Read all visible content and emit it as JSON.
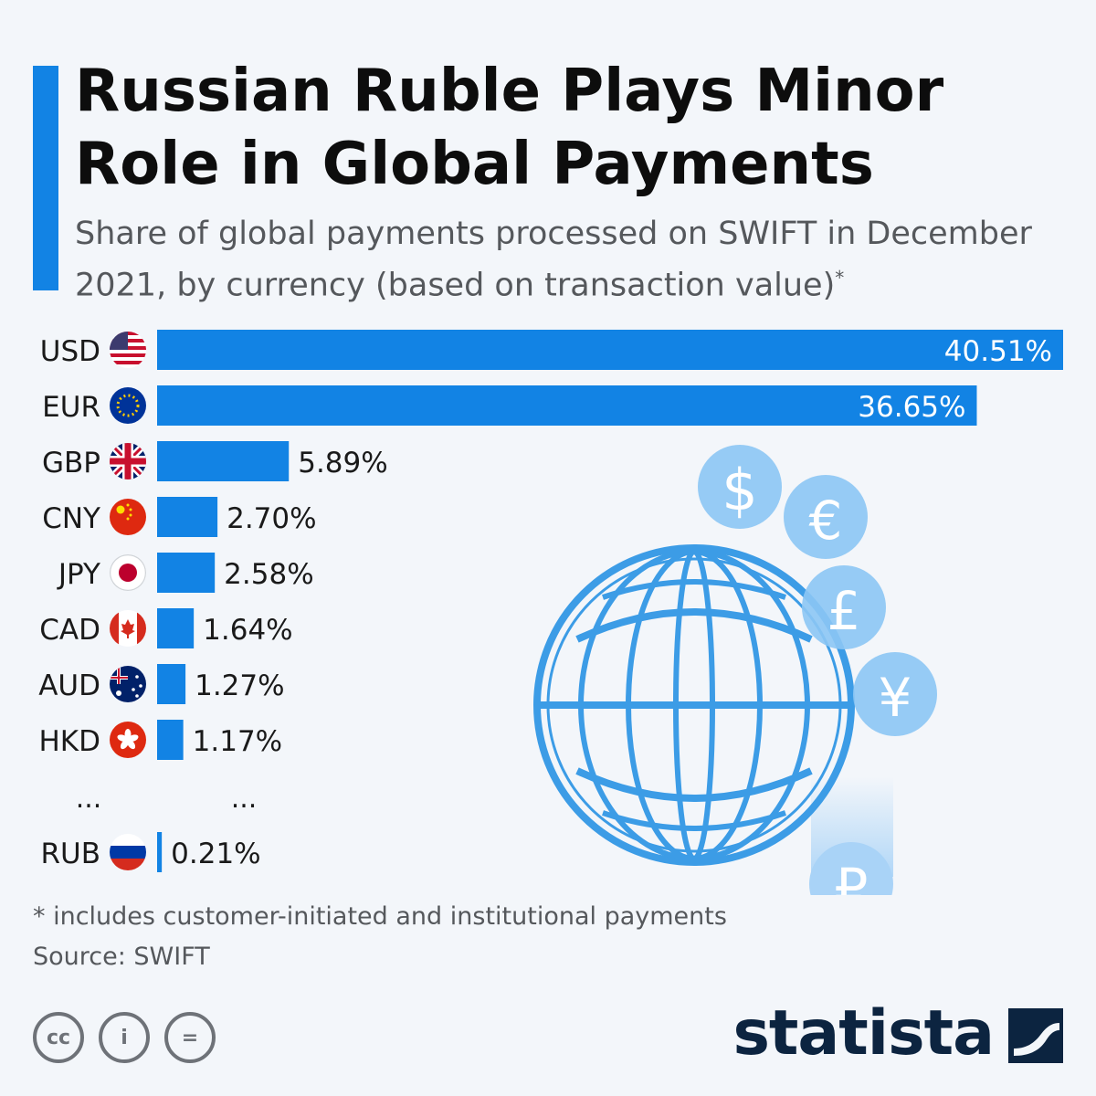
{
  "header": {
    "title": "Russian Ruble Plays Minor Role in Global Payments",
    "subtitle": "Share of global payments processed on SWIFT in December 2021, by currency (based on transaction value)",
    "subtitle_mark": "*"
  },
  "chart_data": {
    "type": "bar",
    "orientation": "horizontal",
    "categories": [
      "USD",
      "EUR",
      "GBP",
      "CNY",
      "JPY",
      "CAD",
      "AUD",
      "HKD",
      "RUB"
    ],
    "values": [
      40.51,
      36.65,
      5.89,
      2.7,
      2.58,
      1.64,
      1.27,
      1.17,
      0.21
    ],
    "value_labels": [
      "40.51%",
      "36.65%",
      "5.89%",
      "2.70%",
      "2.58%",
      "1.64%",
      "1.27%",
      "1.17%",
      "0.21%"
    ],
    "gap_marker": "...",
    "unit": "%",
    "bar_color": "#1283e4",
    "grid": false
  },
  "decor": {
    "coin_symbols": [
      "$",
      "€",
      "£",
      "¥",
      "₽"
    ],
    "icons": [
      "globe-icon",
      "dollar-coin-icon",
      "euro-coin-icon",
      "pound-coin-icon",
      "yen-coin-icon",
      "ruble-coin-icon"
    ]
  },
  "footer": {
    "footnote": "* includes customer-initiated and institutional payments",
    "source": "Source: SWIFT",
    "brand": "statista",
    "cc_labels": [
      "cc",
      "i",
      "="
    ]
  }
}
